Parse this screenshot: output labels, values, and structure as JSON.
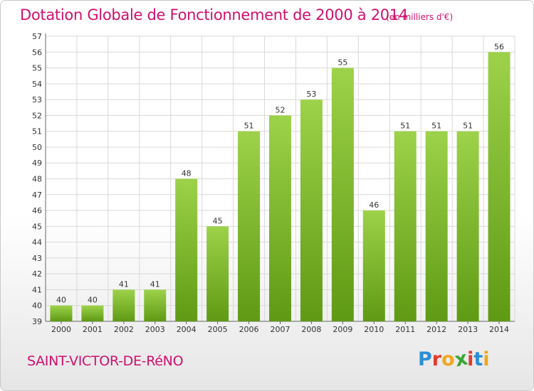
{
  "title": "Dotation Globale de Fonctionnement de 2000 à 2014",
  "subtitle": "(en milliers d'€)",
  "commune": "SAINT-VICTOR-DE-RéNO",
  "logo": {
    "letters": [
      "P",
      "r",
      "o",
      "x",
      "i",
      "t",
      "i"
    ],
    "colors": [
      "#2a8fd6",
      "#e33b2e",
      "#f0a71c",
      "#3aa635",
      "#e33b2e",
      "#2a8fd6",
      "#f0a71c"
    ]
  },
  "colors": {
    "bar_top": "#9dd24a",
    "bar_bottom": "#5f9a14",
    "title": "#d0106e",
    "grid": "#d9d9d9"
  },
  "chart_data": {
    "type": "bar",
    "title": "Dotation Globale de Fonctionnement de 2000 à 2014",
    "unit": "en milliers d'€",
    "categories": [
      "2000",
      "2001",
      "2002",
      "2003",
      "2004",
      "2005",
      "2006",
      "2007",
      "2008",
      "2009",
      "2010",
      "2011",
      "2012",
      "2013",
      "2014"
    ],
    "values": [
      40,
      40,
      41,
      41,
      48,
      45,
      51,
      52,
      53,
      55,
      46,
      51,
      51,
      51,
      56
    ],
    "xlabel": "",
    "ylabel": "",
    "ylim": [
      39,
      57
    ],
    "yticks": [
      39,
      40,
      41,
      42,
      43,
      44,
      45,
      46,
      47,
      48,
      49,
      50,
      51,
      52,
      53,
      54,
      55,
      56,
      57
    ],
    "grid": true
  }
}
